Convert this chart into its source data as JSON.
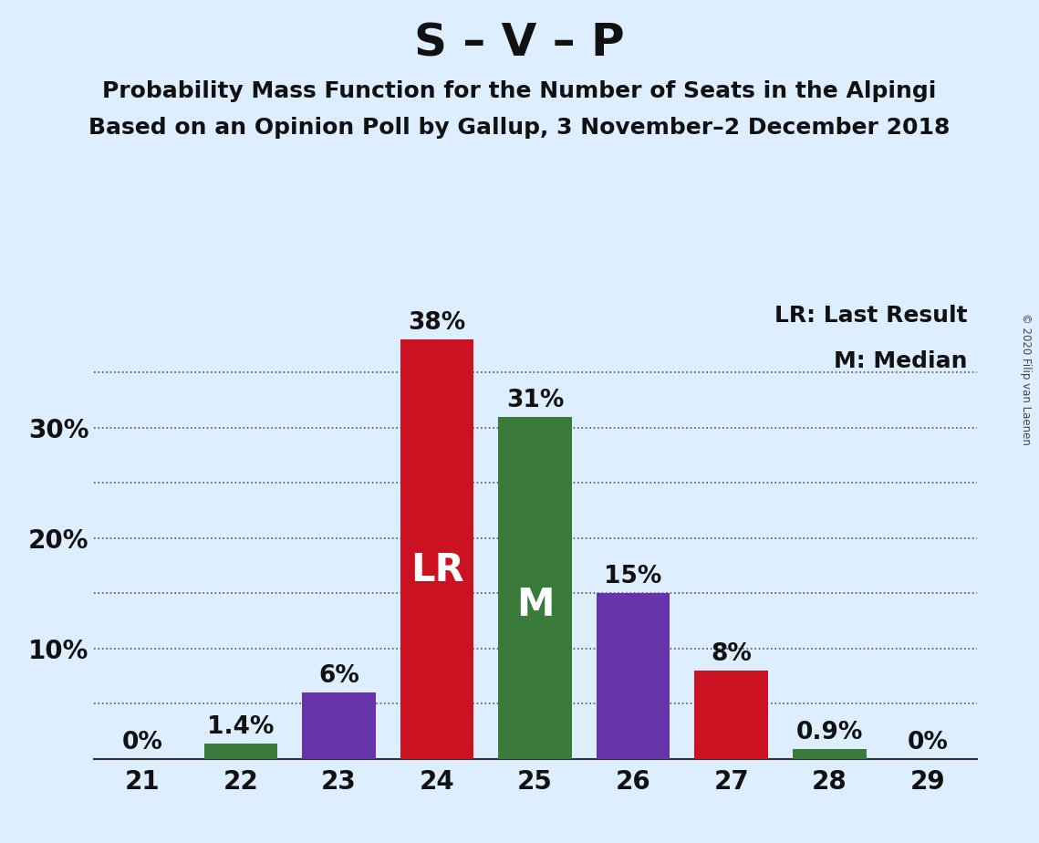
{
  "title": "S – V – P",
  "subtitle1": "Probability Mass Function for the Number of Seats in the Alpingi",
  "subtitle2": "Based on an Opinion Poll by Gallup, 3 November–2 December 2018",
  "copyright": "© 2020 Filip van Laenen",
  "seats": [
    21,
    22,
    23,
    24,
    25,
    26,
    27,
    28,
    29
  ],
  "values": [
    0.0,
    1.4,
    6.0,
    38.0,
    31.0,
    15.0,
    8.0,
    0.9,
    0.0
  ],
  "bar_colors": [
    "#3a7a3a",
    "#3a7a3a",
    "#6633aa",
    "#cc1122",
    "#3a7a3a",
    "#6633aa",
    "#cc1122",
    "#3a7a3a",
    "#3a7a3a"
  ],
  "labels": [
    "0%",
    "1.4%",
    "6%",
    "38%",
    "31%",
    "15%",
    "8%",
    "0.9%",
    "0%"
  ],
  "lr_bar": 24,
  "median_bar": 25,
  "lr_label": "LR",
  "median_label": "M",
  "legend_lr": "LR: Last Result",
  "legend_m": "M: Median",
  "ylim_max": 42,
  "ytick_positions": [
    10,
    20,
    30
  ],
  "ytick_labels": [
    "10%",
    "20%",
    "30%"
  ],
  "grid_yticks": [
    5,
    10,
    15,
    20,
    25,
    30,
    35
  ],
  "background_color": "#ddeeff",
  "title_fontsize": 36,
  "subtitle_fontsize": 18,
  "tick_fontsize": 20,
  "legend_fontsize": 18,
  "bar_label_fontsize": 19,
  "inbar_lr_fontsize": 30,
  "inbar_m_fontsize": 30,
  "bar_width": 0.75
}
